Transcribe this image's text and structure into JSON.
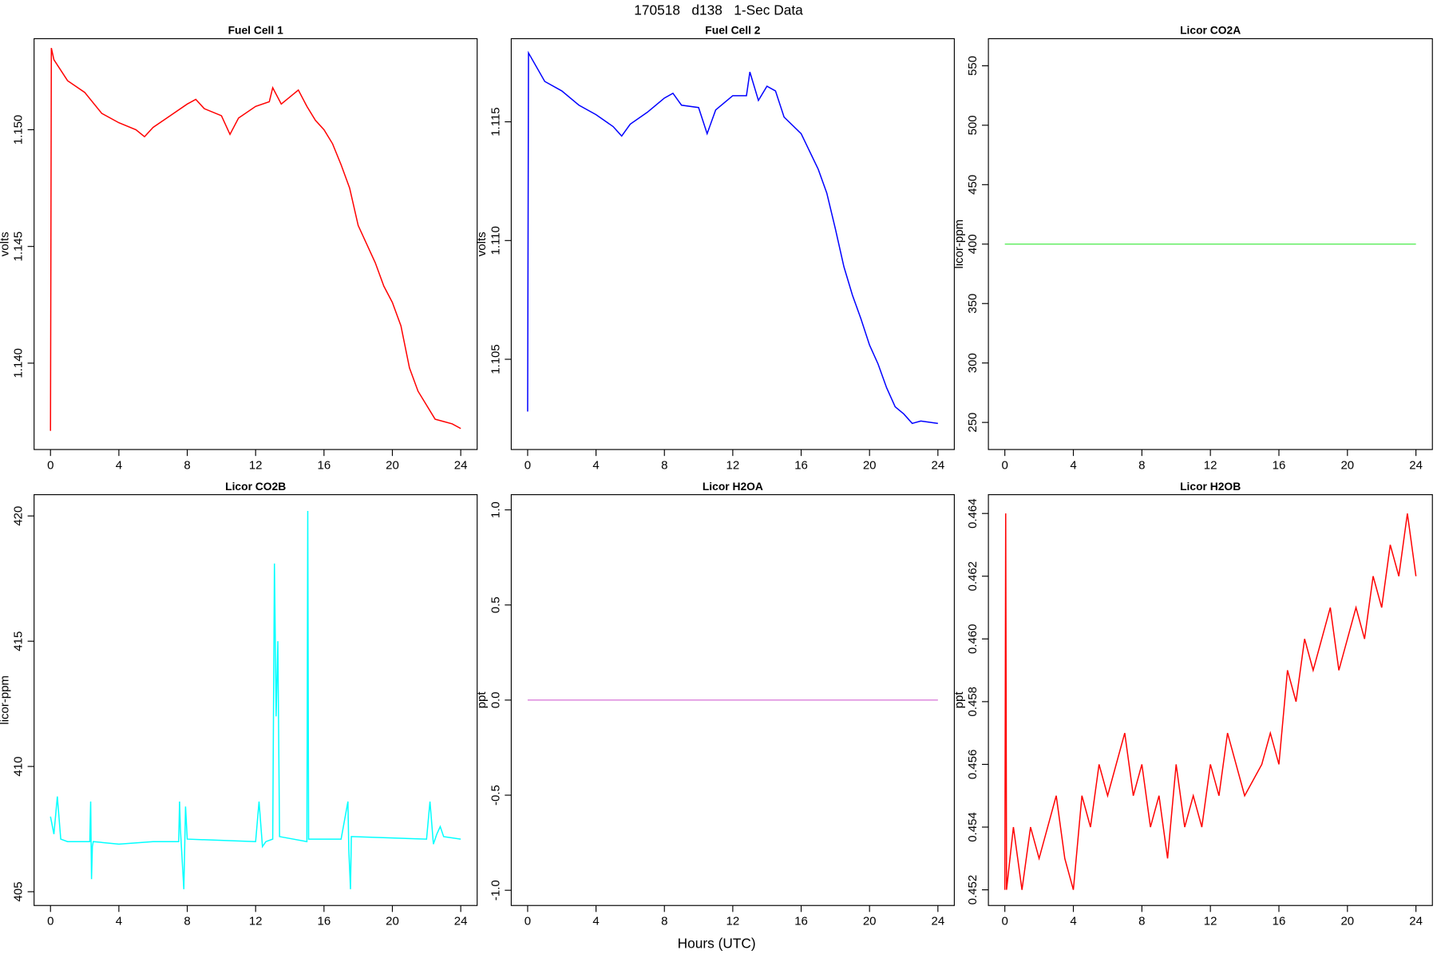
{
  "title": "170518   d138   1-Sec Data",
  "xlabel": "Hours (UTC)",
  "chart_data": [
    {
      "type": "line",
      "title": "Fuel Cell 1",
      "ylabel": "volts",
      "xlim": [
        -0.96,
        24.96
      ],
      "xticks": [
        0,
        4,
        8,
        12,
        16,
        20,
        24
      ],
      "ylim": [
        1.1363,
        1.1539
      ],
      "yticks": [
        {
          "value": 1.14,
          "label": "1.140"
        },
        1.145,
        {
          "value": 1.15,
          "label": "1.150"
        }
      ],
      "series": [
        {
          "color": "#ff0000",
          "x": [
            0,
            0.05,
            0.2,
            1,
            2,
            3,
            4,
            5,
            5.5,
            6,
            7,
            8,
            8.5,
            9,
            10,
            10.5,
            11,
            12,
            12.8,
            13,
            13.5,
            14,
            14.5,
            15,
            15.5,
            16,
            16.5,
            17,
            17.5,
            18,
            18.5,
            19,
            19.5,
            20,
            20.5,
            21,
            21.5,
            22,
            22.5,
            23,
            23.5,
            24
          ],
          "values": [
            1.1371,
            1.1535,
            1.153,
            1.1521,
            1.1516,
            1.1507,
            1.1503,
            1.15,
            1.1497,
            1.1501,
            1.1506,
            1.1511,
            1.1513,
            1.1509,
            1.1506,
            1.1498,
            1.1505,
            1.151,
            1.1512,
            1.1518,
            1.1511,
            1.1514,
            1.1517,
            1.151,
            1.1504,
            1.15,
            1.1494,
            1.1485,
            1.1475,
            1.1459,
            1.1451,
            1.1443,
            1.1433,
            1.1426,
            1.1416,
            1.1398,
            1.1388,
            1.1382,
            1.1376,
            1.1375,
            1.1374,
            1.1372
          ]
        }
      ]
    },
    {
      "type": "line",
      "title": "Fuel Cell 2",
      "ylabel": "volts",
      "xlim": [
        -0.96,
        24.96
      ],
      "xticks": [
        0,
        4,
        8,
        12,
        16,
        20,
        24
      ],
      "ylim": [
        1.1012,
        1.1185
      ],
      "yticks": [
        1.105,
        {
          "value": 1.11,
          "label": "1.110"
        },
        1.115
      ],
      "series": [
        {
          "color": "#0000ff",
          "x": [
            0,
            0.05,
            1,
            2,
            3,
            4,
            5,
            5.5,
            6,
            7,
            8,
            8.5,
            9,
            10,
            10.5,
            11,
            12,
            12.8,
            13,
            13.5,
            14,
            14.5,
            15,
            16,
            17,
            17.5,
            18,
            18.5,
            19,
            19.5,
            20,
            20.5,
            21,
            21.5,
            22,
            22.5,
            23,
            24
          ],
          "values": [
            1.1028,
            1.1179,
            1.1167,
            1.1163,
            1.1157,
            1.1153,
            1.1148,
            1.1144,
            1.1149,
            1.1154,
            1.116,
            1.1162,
            1.1157,
            1.1156,
            1.1145,
            1.1155,
            1.1161,
            1.1161,
            1.1171,
            1.1159,
            1.1165,
            1.1163,
            1.1152,
            1.1145,
            1.113,
            1.112,
            1.1105,
            1.1089,
            1.1077,
            1.1067,
            1.1056,
            1.1048,
            1.1038,
            1.103,
            1.1027,
            1.1023,
            1.1024,
            1.1023
          ]
        }
      ]
    },
    {
      "type": "line",
      "title": "Licor CO2A",
      "ylabel": "licor-ppm",
      "xlim": [
        -0.96,
        24.96
      ],
      "xticks": [
        0,
        4,
        8,
        12,
        16,
        20,
        24
      ],
      "ylim": [
        227.2,
        572.8
      ],
      "yticks": [
        250,
        300,
        350,
        400,
        450,
        500,
        550
      ],
      "series": [
        {
          "color": "#66ee66",
          "x": [
            0,
            24
          ],
          "values": [
            400,
            400
          ]
        }
      ]
    },
    {
      "type": "line",
      "title": "Licor CO2B",
      "ylabel": "licor-ppm",
      "xlim": [
        -0.96,
        24.96
      ],
      "xticks": [
        0,
        4,
        8,
        12,
        16,
        20,
        24
      ],
      "ylim": [
        404.45,
        420.85
      ],
      "yticks": [
        405,
        410,
        415,
        420
      ],
      "series": [
        {
          "color": "#00ffff",
          "x": [
            0,
            0.2,
            0.4,
            0.6,
            1,
            2.3,
            2.35,
            2.4,
            2.45,
            2.5,
            4,
            6,
            7.5,
            7.55,
            7.6,
            7.8,
            7.9,
            8,
            12,
            12.2,
            12.4,
            12.6,
            13,
            13.1,
            13.2,
            13.3,
            13.4,
            15,
            15.05,
            15.1,
            17,
            17.4,
            17.45,
            17.55,
            17.6,
            22,
            22.2,
            22.4,
            22.6,
            22.8,
            23,
            24
          ],
          "values": [
            408,
            407.3,
            408.8,
            407.1,
            407,
            407,
            408.6,
            405.5,
            406.8,
            407,
            406.9,
            407,
            407,
            408.6,
            407.5,
            405.1,
            408.4,
            407.1,
            407,
            408.6,
            406.8,
            407,
            407.1,
            418.1,
            412,
            415,
            407.2,
            407,
            420.2,
            407.1,
            407.1,
            408.6,
            406.7,
            405.1,
            407.2,
            407.1,
            408.6,
            406.9,
            407.3,
            407.6,
            407.2,
            407.1
          ]
        }
      ]
    },
    {
      "type": "line",
      "title": "Licor H2OA",
      "ylabel": "ppt",
      "xlim": [
        -0.96,
        24.96
      ],
      "xticks": [
        0,
        4,
        8,
        12,
        16,
        20,
        24
      ],
      "ylim": [
        -1.08,
        1.08
      ],
      "yticks": [
        {
          "value": -1,
          "label": "-1.0"
        },
        -0.5,
        {
          "value": 0,
          "label": "0.0"
        },
        0.5,
        {
          "value": 1,
          "label": "1.0"
        }
      ],
      "series": [
        {
          "color": "#dd88dd",
          "x": [
            0,
            24
          ],
          "values": [
            0,
            0
          ]
        }
      ]
    },
    {
      "type": "line",
      "title": "Licor H2OB",
      "ylabel": "ppt",
      "xlim": [
        -0.96,
        24.96
      ],
      "xticks": [
        0,
        4,
        8,
        12,
        16,
        20,
        24
      ],
      "ylim": [
        0.4515,
        0.4646
      ],
      "yticks": [
        0.452,
        0.454,
        0.456,
        0.458,
        {
          "value": 0.46,
          "label": "0.460"
        },
        0.462,
        0.464
      ],
      "series": [
        {
          "color": "#ff0000",
          "x": [
            0,
            0.05,
            0.1,
            0.5,
            1,
            1.5,
            2,
            3,
            3.5,
            4,
            4.5,
            5,
            5.5,
            6,
            7,
            7.5,
            8,
            8.5,
            9,
            9.5,
            10,
            10.5,
            11,
            11.5,
            12,
            12.5,
            13,
            14,
            15,
            15.5,
            16,
            16.5,
            17,
            17.5,
            18,
            19,
            19.5,
            20,
            20.5,
            21,
            21.5,
            22,
            22.5,
            23,
            23.5,
            24
          ],
          "values": [
            0.452,
            0.464,
            0.452,
            0.454,
            0.452,
            0.454,
            0.453,
            0.455,
            0.453,
            0.452,
            0.455,
            0.454,
            0.456,
            0.455,
            0.457,
            0.455,
            0.456,
            0.454,
            0.455,
            0.453,
            0.456,
            0.454,
            0.455,
            0.454,
            0.456,
            0.455,
            0.457,
            0.455,
            0.456,
            0.457,
            0.456,
            0.459,
            0.458,
            0.46,
            0.459,
            0.461,
            0.459,
            0.46,
            0.461,
            0.46,
            0.462,
            0.461,
            0.463,
            0.462,
            0.464,
            0.462
          ]
        }
      ]
    }
  ]
}
